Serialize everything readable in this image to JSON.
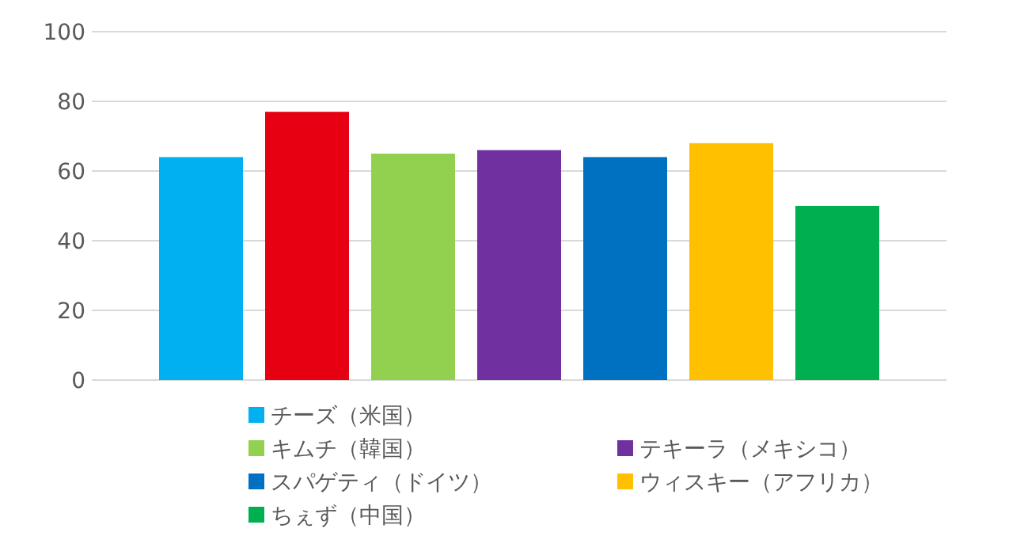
{
  "chart_data": {
    "type": "bar",
    "categories": [
      null
    ],
    "ylim": [
      0,
      100
    ],
    "yticks": [
      0,
      20,
      40,
      60,
      80,
      100
    ],
    "grid": "y",
    "legend": "bottom",
    "series": [
      {
        "name": "チーズ（米国）",
        "color": "#00b0f0",
        "values": [
          64
        ]
      },
      {
        "color": "#e60012",
        "values": [
          77
        ]
      },
      {
        "name": "キムチ（韓国）",
        "color": "#92d050",
        "values": [
          65
        ]
      },
      {
        "name": "テキーラ（メキシコ）",
        "color": "#7030a0",
        "values": [
          66
        ]
      },
      {
        "name": "スパゲティ（ドイツ）",
        "color": "#0070c0",
        "values": [
          64
        ]
      },
      {
        "name": "ウィスキー（アフリカ）",
        "color": "#ffc000",
        "values": [
          68
        ]
      },
      {
        "name": "ちぇず（中国）",
        "color": "#00b050",
        "values": [
          50
        ]
      }
    ]
  }
}
